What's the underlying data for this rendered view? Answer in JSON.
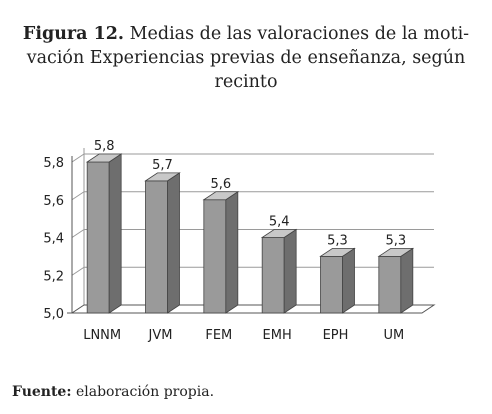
{
  "figure": {
    "label": "Figura 12.",
    "title_line1": "Medias de las valoraciones de la moti-",
    "title_line2": "vación Experiencias previas de enseñanza, según",
    "title_line3": "recinto"
  },
  "source": {
    "label": "Fuente:",
    "text": "elaboración propia."
  },
  "chart_data": {
    "type": "bar",
    "style": "3d",
    "categories": [
      "LNNM",
      "JVM",
      "FEM",
      "EMH",
      "EPH",
      "UM"
    ],
    "values": [
      5.8,
      5.7,
      5.6,
      5.4,
      5.3,
      5.3
    ],
    "value_labels": [
      "5,8",
      "5,7",
      "5,6",
      "5,4",
      "5,3",
      "5,3"
    ],
    "ylim": [
      5.0,
      5.8
    ],
    "yticks": [
      5.0,
      5.2,
      5.4,
      5.6,
      5.8
    ],
    "ytick_labels": [
      "5,0",
      "5,2",
      "5,4",
      "5,6",
      "5,8"
    ],
    "grid": true,
    "legend": "none",
    "colors": {
      "bar_front": "#9a9a9a",
      "bar_side": "#6e6e6e",
      "bar_top": "#c8c8c8",
      "grid": "#9a9a9a",
      "axis": "#555555"
    }
  }
}
